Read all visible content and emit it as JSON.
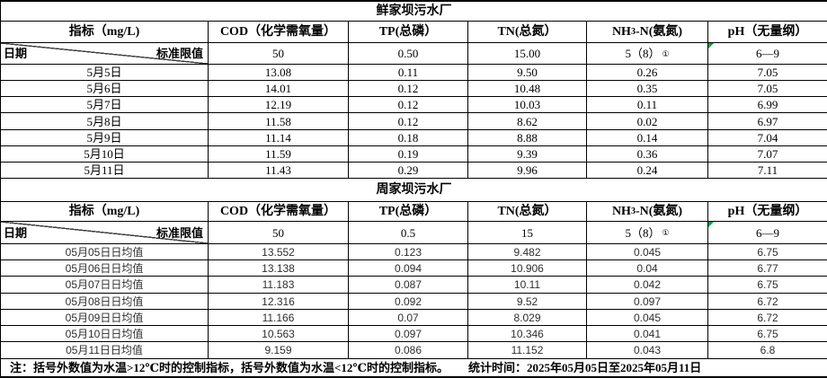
{
  "sheet": {
    "columns": {
      "indicator": "指标（mg/L)",
      "date_label": "日期",
      "limit_label": "标准限值",
      "cod": "COD（化学需氧量）",
      "tp": "TP(总磷）",
      "tn": "TN(总氮）",
      "nh3_pre": "NH",
      "nh3_sub": "3",
      "nh3_post": "-N(氨氮)",
      "ph": "pH（无量纲）"
    },
    "flag_color": "#00a03c",
    "plant1": {
      "title": "鲜家坝污水厂",
      "limits": {
        "cod": "50",
        "tp": "0.50",
        "tn": "15.00",
        "nh3": "5（8）",
        "nh3_sup": "①",
        "ph": "6—9"
      },
      "rows": [
        {
          "date": "5月5日",
          "cod": "13.08",
          "tp": "0.11",
          "tn": "9.50",
          "nh3": "0.26",
          "ph": "7.05"
        },
        {
          "date": "5月6日",
          "cod": "14.01",
          "tp": "0.12",
          "tn": "10.48",
          "nh3": "0.35",
          "ph": "7.05"
        },
        {
          "date": "5月7日",
          "cod": "12.19",
          "tp": "0.12",
          "tn": "10.03",
          "nh3": "0.11",
          "ph": "6.99"
        },
        {
          "date": "5月8日",
          "cod": "11.58",
          "tp": "0.12",
          "tn": "8.62",
          "nh3": "0.02",
          "ph": "6.97"
        },
        {
          "date": "5月9日",
          "cod": "11.14",
          "tp": "0.18",
          "tn": "8.88",
          "nh3": "0.14",
          "ph": "7.04"
        },
        {
          "date": "5月10日",
          "cod": "11.59",
          "tp": "0.19",
          "tn": "9.39",
          "nh3": "0.36",
          "ph": "7.07"
        },
        {
          "date": "5月11日",
          "cod": "11.43",
          "tp": "0.29",
          "tn": "9.96",
          "nh3": "0.24",
          "ph": "7.11"
        }
      ]
    },
    "plant2": {
      "title": "周家坝污水厂",
      "limits": {
        "cod": "50",
        "tp": "0.5",
        "tn": "15",
        "nh3": "5（8）",
        "nh3_sup": "①",
        "ph": "6—9"
      },
      "rows": [
        {
          "date": "05月05日日均值",
          "cod": "13.552",
          "tp": "0.123",
          "tn": "9.482",
          "nh3": "0.045",
          "ph": "6.75"
        },
        {
          "date": "05月06日日均值",
          "cod": "13.138",
          "tp": "0.094",
          "tn": "10.906",
          "nh3": "0.04",
          "ph": "6.77"
        },
        {
          "date": "05月07日日均值",
          "cod": "11.183",
          "tp": "0.087",
          "tn": "10.11",
          "nh3": "0.042",
          "ph": "6.75"
        },
        {
          "date": "05月08日日均值",
          "cod": "12.316",
          "tp": "0.092",
          "tn": "9.52",
          "nh3": "0.097",
          "ph": "6.72"
        },
        {
          "date": "05月09日日均值",
          "cod": "11.166",
          "tp": "0.07",
          "tn": "8.029",
          "nh3": "0.045",
          "ph": "6.72"
        },
        {
          "date": "05月10日日均值",
          "cod": "10.563",
          "tp": "0.097",
          "tn": "10.346",
          "nh3": "0.041",
          "ph": "6.75"
        },
        {
          "date": "05月11日日均值",
          "cod": "9.159",
          "tp": "0.086",
          "tn": "11.152",
          "nh3": "0.043",
          "ph": "6.8"
        }
      ]
    },
    "note": {
      "text": "注：括号外数值为水温>12℃时的控制指标，括号外数值为水温<12℃时的控制指标。",
      "stats": "统计时间：2025年05月05日至2025年05月11日"
    }
  }
}
